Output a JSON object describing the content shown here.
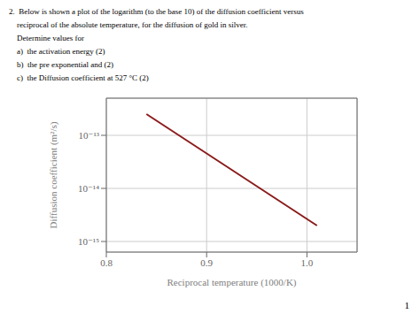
{
  "chart_data": {
    "type": "line",
    "annotations": [
      "2.  Below is shown a plot of the logarithm (to the base 10) of the diffusion coefficient versus",
      "    reciprocal of the absolute temperature, for the diffusion of gold in silver.",
      "    Determine values for",
      "    a)  the activation energy (2)",
      "    b)  the pre exponential and (2)",
      "    c)  the Diffusion coefficient at 527 °C (2)",
      "1"
    ],
    "x_label": "Reciprocal temperature (1000/K)",
    "y_label": "Diffusion coefficient (m²/s)",
    "x": [
      0.84,
      1.01
    ],
    "series": [
      {
        "name": "Diffusion coefficient",
        "color": "#8B1A1A",
        "values": [
          2.5118864315095825e-13,
          1.995262314968883e-15
        ]
      }
    ],
    "xlim": [
      0.8,
      1.05
    ],
    "ylim": [
      6.309573444801943e-16,
      5.011872336272725e-13
    ],
    "xticks": [
      0.8,
      0.9,
      {
        "value": 1.0,
        "label": "1.0"
      }
    ],
    "yticks": [
      {
        "value": 1e-13,
        "label": "10⁻¹³"
      },
      {
        "value": 1e-14,
        "label": "10⁻¹⁴"
      },
      {
        "value": 1e-15,
        "label": "10⁻¹⁵"
      }
    ],
    "log": "y",
    "grid": true
  }
}
